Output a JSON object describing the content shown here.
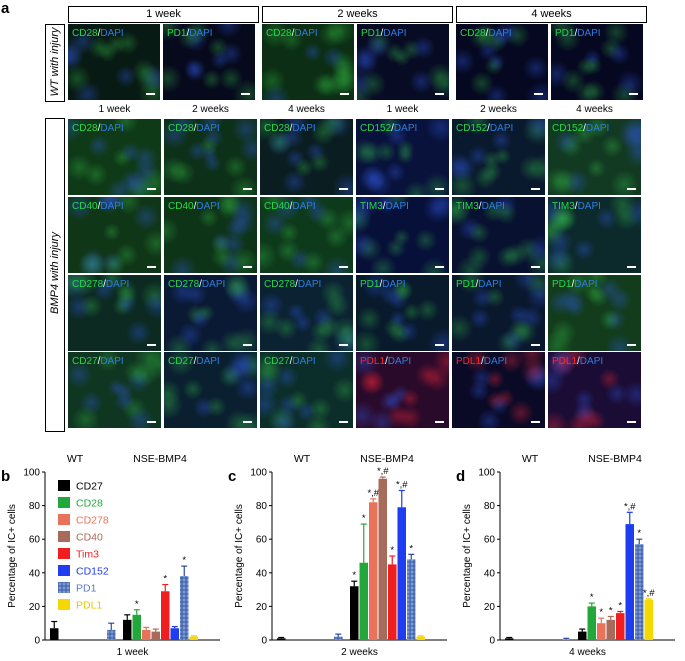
{
  "panel_letters": {
    "a": "a",
    "b": "b",
    "c": "c",
    "d": "d"
  },
  "wt_section": {
    "side_label": "WT with injury",
    "period_headers": [
      "1 week",
      "2 weeks",
      "4 weeks"
    ],
    "tiles": [
      {
        "marker": "CD28",
        "stain": "DAPI",
        "color": "#27d84a",
        "bg": "#081a14"
      },
      {
        "marker": "PD1",
        "stain": "DAPI",
        "color": "#27d84a",
        "bg": "#060a1c"
      },
      {
        "marker": "CD28",
        "stain": "DAPI",
        "color": "#27d84a",
        "bg": "#0b2e14"
      },
      {
        "marker": "PD1",
        "stain": "DAPI",
        "color": "#27d84a",
        "bg": "#070c24"
      },
      {
        "marker": "CD28",
        "stain": "DAPI",
        "color": "#27d84a",
        "bg": "#050820"
      },
      {
        "marker": "PD1",
        "stain": "DAPI",
        "color": "#27d84a",
        "bg": "#050820"
      }
    ]
  },
  "bmp4_section": {
    "side_label": "BMP4 with injury",
    "column_headers": [
      "1 week",
      "2 weeks",
      "4 weeks",
      "1 week",
      "2 weeks",
      "4 weeks"
    ],
    "rows": [
      [
        {
          "marker": "CD28",
          "stain": "DAPI",
          "color": "#27d84a",
          "bg": "#0f3a18"
        },
        {
          "marker": "CD28",
          "stain": "DAPI",
          "color": "#27d84a",
          "bg": "#0d3018"
        },
        {
          "marker": "CD28",
          "stain": "DAPI",
          "color": "#27d84a",
          "bg": "#0a1e22"
        },
        {
          "marker": "CD152",
          "stain": "DAPI",
          "color": "#27d84a",
          "bg": "#08123a"
        },
        {
          "marker": "CD152",
          "stain": "DAPI",
          "color": "#27d84a",
          "bg": "#0a1a2e"
        },
        {
          "marker": "CD152",
          "stain": "DAPI",
          "color": "#27d84a",
          "bg": "#123a22"
        }
      ],
      [
        {
          "marker": "CD40",
          "stain": "DAPI",
          "color": "#27d84a",
          "bg": "#103618"
        },
        {
          "marker": "CD40",
          "stain": "DAPI",
          "color": "#27d84a",
          "bg": "#0e3418"
        },
        {
          "marker": "CD40",
          "stain": "DAPI",
          "color": "#27d84a",
          "bg": "#0e3a1c"
        },
        {
          "marker": "TIM3",
          "stain": "DAPI",
          "color": "#27d84a",
          "bg": "#071038"
        },
        {
          "marker": "TIM3",
          "stain": "DAPI",
          "color": "#27d84a",
          "bg": "#081230"
        },
        {
          "marker": "TIM3",
          "stain": "DAPI",
          "color": "#27d84a",
          "bg": "#0c2a2c"
        }
      ],
      [
        {
          "marker": "CD278",
          "stain": "DAPI",
          "color": "#27d84a",
          "bg": "#0c2a22"
        },
        {
          "marker": "CD278",
          "stain": "DAPI",
          "color": "#27d84a",
          "bg": "#0a1a34"
        },
        {
          "marker": "CD278",
          "stain": "DAPI",
          "color": "#27d84a",
          "bg": "#0b2232"
        },
        {
          "marker": "PD1",
          "stain": "DAPI",
          "color": "#27d84a",
          "bg": "#081a2c"
        },
        {
          "marker": "PD1",
          "stain": "DAPI",
          "color": "#27d84a",
          "bg": "#09182c"
        },
        {
          "marker": "PD1",
          "stain": "DAPI",
          "color": "#27d84a",
          "bg": "#123c1c"
        }
      ],
      [
        {
          "marker": "CD27",
          "stain": "DAPI",
          "color": "#27d84a",
          "bg": "#0f3620"
        },
        {
          "marker": "CD27",
          "stain": "DAPI",
          "color": "#27d84a",
          "bg": "#0a2030"
        },
        {
          "marker": "CD27",
          "stain": "DAPI",
          "color": "#27d84a",
          "bg": "#0c2e2a"
        },
        {
          "marker": "PDL1",
          "stain": "DAPI",
          "color": "#ff2a2a",
          "bg": "#2a0a2a"
        },
        {
          "marker": "PDL1",
          "stain": "DAPI",
          "color": "#ff2a2a",
          "bg": "#0a0a26"
        },
        {
          "marker": "PDL1",
          "stain": "DAPI",
          "color": "#ff2a2a",
          "bg": "#1a0c34"
        }
      ]
    ]
  },
  "legend": [
    {
      "label": "CD27",
      "color": "#000000",
      "text_color": "#000000"
    },
    {
      "label": "CD28",
      "color": "#22a83a",
      "text_color": "#22a83a"
    },
    {
      "label": "CD278",
      "color": "#e8735a",
      "text_color": "#e8735a"
    },
    {
      "label": "CD40",
      "color": "#a86a5a",
      "text_color": "#a86a5a"
    },
    {
      "label": "Tim3",
      "color": "#f01e1e",
      "text_color": "#f01e1e"
    },
    {
      "label": "CD152",
      "color": "#1e3cf0",
      "text_color": "#1e3cf0"
    },
    {
      "label": "PD1",
      "color": "#7a9ad0",
      "text_color": "#5a7ac8",
      "hatched": true
    },
    {
      "label": "PDL1",
      "color": "#f5d800",
      "text_color": "#e8c800"
    }
  ],
  "chart_data": [
    {
      "type": "bar",
      "panel": "b",
      "ylabel": "Percentage of IC+ cells",
      "xlabel": "1 week",
      "ylim": [
        0,
        100
      ],
      "yticks": [
        0,
        20,
        40,
        60,
        80,
        100
      ],
      "groups": [
        "WT",
        "NSE-BMP4"
      ],
      "series": [
        {
          "name": "CD27",
          "values": [
            7,
            12
          ],
          "errors": [
            4,
            3
          ],
          "marks": [
            "",
            ""
          ]
        },
        {
          "name": "CD28",
          "values": [
            0,
            15
          ],
          "errors": [
            0,
            3
          ],
          "marks": [
            "",
            "*"
          ]
        },
        {
          "name": "CD278",
          "values": [
            0,
            6
          ],
          "errors": [
            0,
            1.5
          ],
          "marks": [
            "",
            ""
          ]
        },
        {
          "name": "CD40",
          "values": [
            0,
            5
          ],
          "errors": [
            0,
            1.5
          ],
          "marks": [
            "",
            ""
          ]
        },
        {
          "name": "Tim3",
          "values": [
            0,
            29
          ],
          "errors": [
            0,
            4
          ],
          "marks": [
            "",
            "*"
          ]
        },
        {
          "name": "CD152",
          "values": [
            0,
            7
          ],
          "errors": [
            0,
            1
          ],
          "marks": [
            "",
            ""
          ]
        },
        {
          "name": "PD1",
          "values": [
            6,
            38
          ],
          "errors": [
            4,
            6
          ],
          "marks": [
            "",
            "*"
          ]
        },
        {
          "name": "PDL1",
          "values": [
            0,
            2
          ],
          "errors": [
            0,
            0.5
          ],
          "marks": [
            "",
            ""
          ]
        }
      ]
    },
    {
      "type": "bar",
      "panel": "c",
      "ylabel": "Percentage of IC+ cells",
      "xlabel": "2 weeks",
      "ylim": [
        0,
        100
      ],
      "yticks": [
        0,
        20,
        40,
        60,
        80,
        100
      ],
      "groups": [
        "WT",
        "NSE-BMP4"
      ],
      "series": [
        {
          "name": "CD27",
          "values": [
            1,
            32
          ],
          "errors": [
            0.5,
            3
          ],
          "marks": [
            "",
            "*"
          ]
        },
        {
          "name": "CD28",
          "values": [
            0,
            46
          ],
          "errors": [
            0,
            23
          ],
          "marks": [
            "",
            "*"
          ]
        },
        {
          "name": "CD278",
          "values": [
            0,
            82
          ],
          "errors": [
            0,
            2
          ],
          "marks": [
            "",
            "*,#"
          ]
        },
        {
          "name": "CD40",
          "values": [
            0,
            96
          ],
          "errors": [
            0,
            1
          ],
          "marks": [
            "",
            "*,#"
          ]
        },
        {
          "name": "Tim3",
          "values": [
            0,
            45
          ],
          "errors": [
            0,
            5
          ],
          "marks": [
            "",
            "*"
          ]
        },
        {
          "name": "CD152",
          "values": [
            0,
            79
          ],
          "errors": [
            0,
            10
          ],
          "marks": [
            "",
            "*,#"
          ]
        },
        {
          "name": "PD1",
          "values": [
            2,
            48
          ],
          "errors": [
            1.5,
            3
          ],
          "marks": [
            "",
            "*"
          ]
        },
        {
          "name": "PDL1",
          "values": [
            0,
            2
          ],
          "errors": [
            0,
            0.5
          ],
          "marks": [
            "",
            ""
          ]
        }
      ]
    },
    {
      "type": "bar",
      "panel": "d",
      "ylabel": "Percentage of IC+ cells",
      "xlabel": "4 weeks",
      "ylim": [
        0,
        100
      ],
      "yticks": [
        0,
        20,
        40,
        60,
        80,
        100
      ],
      "groups": [
        "WT",
        "NSE-BMP4"
      ],
      "series": [
        {
          "name": "CD27",
          "values": [
            1,
            5
          ],
          "errors": [
            0.5,
            1.5
          ],
          "marks": [
            "",
            ""
          ]
        },
        {
          "name": "CD28",
          "values": [
            0,
            20
          ],
          "errors": [
            0,
            2
          ],
          "marks": [
            "",
            "*"
          ]
        },
        {
          "name": "CD278",
          "values": [
            0,
            10
          ],
          "errors": [
            0,
            3
          ],
          "marks": [
            "",
            "*"
          ]
        },
        {
          "name": "CD40",
          "values": [
            0,
            12
          ],
          "errors": [
            0,
            2
          ],
          "marks": [
            "",
            "*"
          ]
        },
        {
          "name": "Tim3",
          "values": [
            0,
            16
          ],
          "errors": [
            0,
            1
          ],
          "marks": [
            "",
            "*"
          ]
        },
        {
          "name": "CD152",
          "values": [
            0,
            69
          ],
          "errors": [
            0,
            7
          ],
          "marks": [
            "",
            "*,#"
          ]
        },
        {
          "name": "PD1",
          "values": [
            0.5,
            57
          ],
          "errors": [
            0.5,
            3
          ],
          "marks": [
            "",
            "*"
          ]
        },
        {
          "name": "PDL1",
          "values": [
            0,
            24
          ],
          "errors": [
            0,
            0.5
          ],
          "marks": [
            "",
            "*,#"
          ]
        }
      ]
    }
  ]
}
